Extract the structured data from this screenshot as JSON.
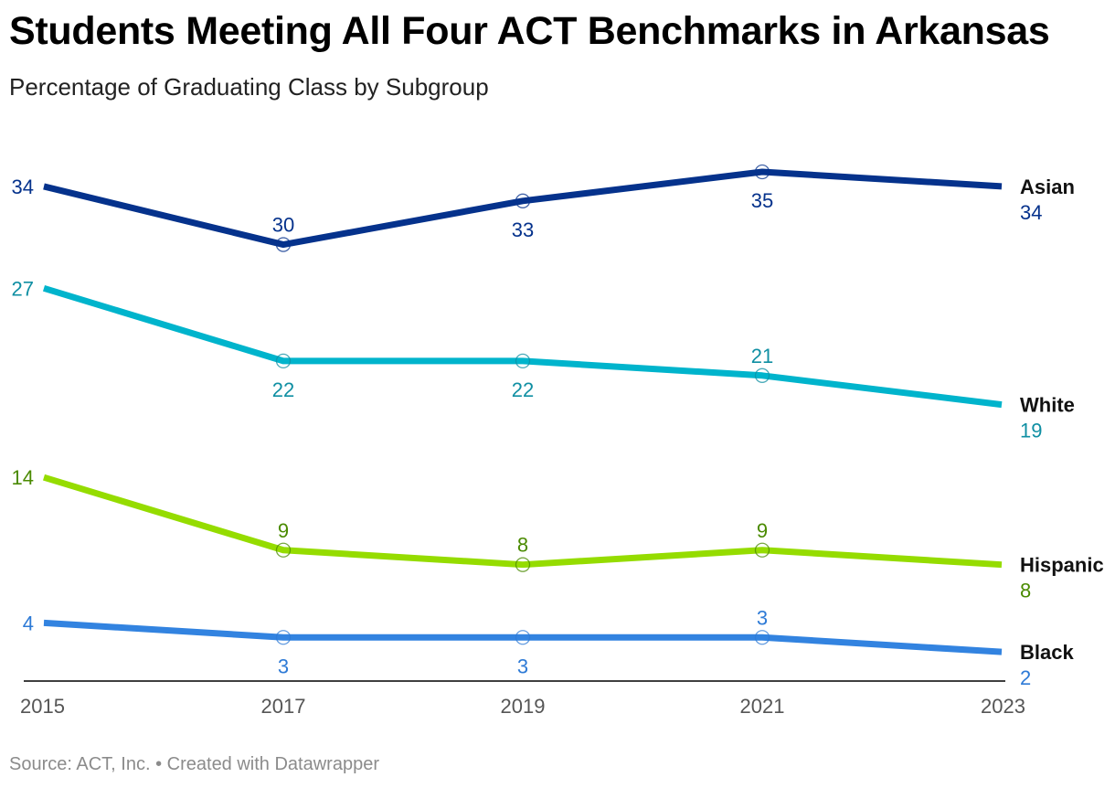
{
  "title": "Students Meeting All Four ACT Benchmarks in Arkansas",
  "subtitle": "Percentage of Graduating Class by Subgroup",
  "footer": {
    "source": "Source: ACT, Inc.",
    "separator": "•",
    "credit": "Created with Datawrapper"
  },
  "chart_data": {
    "type": "line",
    "title": "Students Meeting All Four ACT Benchmarks in Arkansas",
    "subtitle": "Percentage of Graduating Class by Subgroup",
    "x": [
      "2015",
      "2017",
      "2019",
      "2021",
      "2023"
    ],
    "ylim": [
      0,
      35
    ],
    "grid": false,
    "legend": "direct labels at right end of each line",
    "series": [
      {
        "name": "Asian",
        "values": [
          34,
          30,
          33,
          35,
          34
        ],
        "color": "#05328c",
        "label_color": "#05328c",
        "label_positions": [
          "left",
          "above",
          "below",
          "below",
          "right"
        ]
      },
      {
        "name": "White",
        "values": [
          27,
          22,
          22,
          21,
          19
        ],
        "color": "#00b4cc",
        "label_color": "#0f8fa3",
        "label_positions": [
          "left",
          "below",
          "below",
          "above",
          "right"
        ]
      },
      {
        "name": "Hispanic",
        "values": [
          14,
          9,
          8,
          9,
          8
        ],
        "color": "#95dc00",
        "label_color": "#4a8a00",
        "label_positions": [
          "left",
          "above",
          "above",
          "above",
          "right"
        ]
      },
      {
        "name": "Black",
        "values": [
          4,
          3,
          3,
          3,
          2
        ],
        "color": "#3283e0",
        "label_color": "#2d7ad6",
        "label_positions": [
          "left",
          "below",
          "below",
          "above",
          "right"
        ]
      }
    ]
  }
}
